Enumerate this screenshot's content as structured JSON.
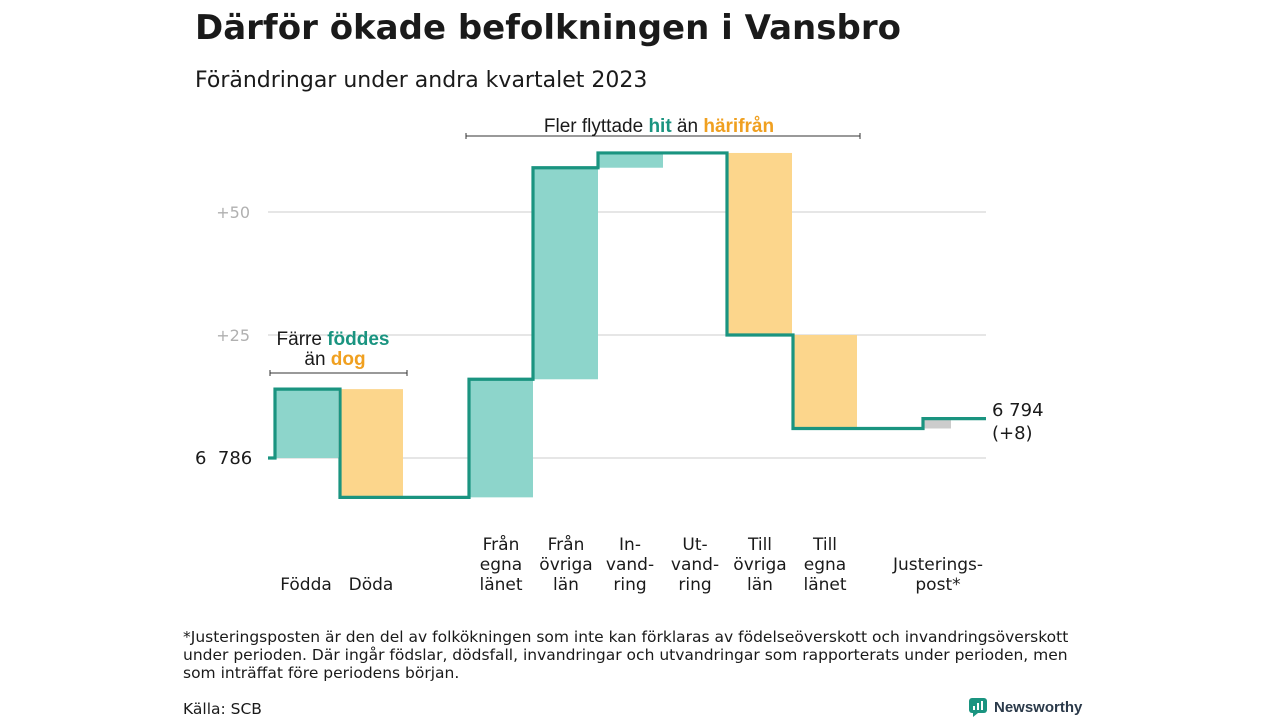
{
  "header": {
    "title": "Därför ökade befolkningen i Vansbro",
    "subtitle": "Förändringar under andra kvartalet 2023"
  },
  "chart_data": {
    "type": "waterfall",
    "start_value": 6786,
    "start_label": "6  786",
    "end_label_line1": "6 794",
    "end_label_line2": "(+8)",
    "yticks": [
      {
        "offset": 25,
        "label": "+25"
      },
      {
        "offset": 50,
        "label": "+50"
      }
    ],
    "steps": [
      {
        "name": "fodda",
        "label": [
          "Födda"
        ],
        "change": 14,
        "color": "#8dd5cb"
      },
      {
        "name": "doda",
        "label": [
          "Döda"
        ],
        "change": -22,
        "color": "#fcd68c"
      },
      {
        "name": "fran-egna-lanet",
        "label": [
          "Från",
          "egna",
          "länet"
        ],
        "change": 24,
        "color": "#8dd5cb"
      },
      {
        "name": "fran-ovriga-lan",
        "label": [
          "Från",
          "övriga",
          "län"
        ],
        "change": 43,
        "color": "#8dd5cb"
      },
      {
        "name": "invandring",
        "label": [
          "In-",
          "vand-",
          "ring"
        ],
        "change": 3,
        "color": "#8dd5cb"
      },
      {
        "name": "utvandring",
        "label": [
          "Ut-",
          "vand-",
          "ring"
        ],
        "change": 0,
        "color": "#fcd68c"
      },
      {
        "name": "till-ovriga-lan",
        "label": [
          "Till",
          "övriga",
          "län"
        ],
        "change": -37,
        "color": "#fcd68c"
      },
      {
        "name": "till-egna-lanet",
        "label": [
          "Till",
          "egna",
          "länet"
        ],
        "change": -19,
        "color": "#fcd68c"
      },
      {
        "name": "justeringspost",
        "label": [
          "Justerings-",
          "post*"
        ],
        "change": 2,
        "color": "#cccccc"
      }
    ],
    "line_color": "#1a9480",
    "annotations": [
      {
        "name": "births-annotation",
        "parts": [
          {
            "text": "Färre ",
            "color": "#1a1a1a",
            "bold": false
          },
          {
            "text": "föddes",
            "color": "#1a9480",
            "bold": true
          },
          {
            "text": "\nän ",
            "color": "#1a1a1a",
            "bold": false
          },
          {
            "text": "dog",
            "color": "#f0a020",
            "bold": true
          }
        ]
      },
      {
        "name": "migration-annotation",
        "parts": [
          {
            "text": "Fler flyttade ",
            "color": "#1a1a1a",
            "bold": false
          },
          {
            "text": "hit",
            "color": "#1a9480",
            "bold": true
          },
          {
            "text": " än ",
            "color": "#1a1a1a",
            "bold": false
          },
          {
            "text": "härifrån",
            "color": "#f0a020",
            "bold": true
          }
        ]
      }
    ]
  },
  "footnote": "*Justeringsposten är den del av folkökningen som inte kan förklaras av födelseöverskott och invandringsöverskott under perioden. Där ingår födslar, dödsfall, invandringar och utvandringar som rapporterats under perioden, men som inträffat före periodens början.",
  "source": "Källa: SCB",
  "brand": {
    "name": "Newsworthy",
    "color": "#2b3a4a"
  }
}
